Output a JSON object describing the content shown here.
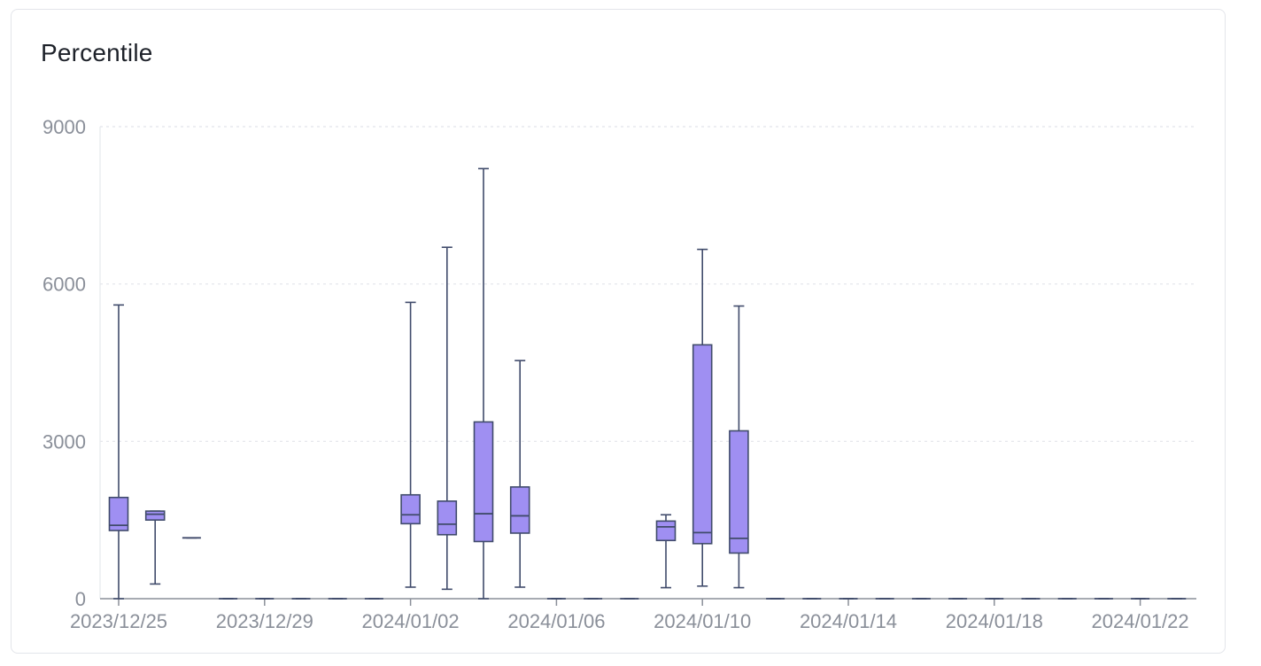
{
  "card": {
    "title": "Percentile"
  },
  "chart_data": {
    "type": "boxplot",
    "title": "Percentile",
    "xlabel": "",
    "ylabel": "",
    "ylim": [
      0,
      9000
    ],
    "y_ticks": [
      0,
      3000,
      6000,
      9000
    ],
    "y_tick_labels": [
      "0",
      "3000",
      "6000",
      "9000"
    ],
    "x_tick_labels": [
      "2023/12/25",
      "2023/12/29",
      "2024/01/02",
      "2024/01/06",
      "2024/01/10",
      "2024/01/14",
      "2024/01/18",
      "2024/01/22"
    ],
    "grid": "horizontal dotted",
    "colors": {
      "box_fill": "#9f8ff2",
      "box_stroke": "#404b6b",
      "axis": "#8a8f99",
      "grid": "#e2e4e9"
    },
    "categories": [
      "2023/12/25",
      "2023/12/26",
      "2023/12/27",
      "2023/12/28",
      "2023/12/29",
      "2023/12/30",
      "2023/12/31",
      "2024/01/01",
      "2024/01/02",
      "2024/01/03",
      "2024/01/04",
      "2024/01/05",
      "2024/01/06",
      "2024/01/07",
      "2024/01/08",
      "2024/01/09",
      "2024/01/10",
      "2024/01/11",
      "2024/01/12",
      "2024/01/13",
      "2024/01/14",
      "2024/01/15",
      "2024/01/16",
      "2024/01/17",
      "2024/01/18",
      "2024/01/19",
      "2024/01/20",
      "2024/01/21",
      "2024/01/22",
      "2024/01/23"
    ],
    "boxes": [
      {
        "date": "2023/12/25",
        "min": 0,
        "q1": 1300,
        "median": 1400,
        "q3": 1930,
        "max": 5600
      },
      {
        "date": "2023/12/26",
        "min": 280,
        "q1": 1500,
        "median": 1610,
        "q3": 1670,
        "max": 1670
      },
      {
        "date": "2023/12/27",
        "min": 1160,
        "q1": 1160,
        "median": 1160,
        "q3": 1160,
        "max": 1160
      },
      {
        "date": "2023/12/28",
        "min": 0,
        "q1": 0,
        "median": 0,
        "q3": 0,
        "max": 0
      },
      {
        "date": "2023/12/29",
        "min": 0,
        "q1": 0,
        "median": 0,
        "q3": 0,
        "max": 0
      },
      {
        "date": "2023/12/30",
        "min": 0,
        "q1": 0,
        "median": 0,
        "q3": 0,
        "max": 0
      },
      {
        "date": "2023/12/31",
        "min": 0,
        "q1": 0,
        "median": 0,
        "q3": 0,
        "max": 0
      },
      {
        "date": "2024/01/01",
        "min": 0,
        "q1": 0,
        "median": 0,
        "q3": 0,
        "max": 0
      },
      {
        "date": "2024/01/02",
        "min": 220,
        "q1": 1430,
        "median": 1600,
        "q3": 1980,
        "max": 5650
      },
      {
        "date": "2024/01/03",
        "min": 180,
        "q1": 1220,
        "median": 1420,
        "q3": 1860,
        "max": 6700
      },
      {
        "date": "2024/01/04",
        "min": 0,
        "q1": 1090,
        "median": 1620,
        "q3": 3370,
        "max": 8200
      },
      {
        "date": "2024/01/05",
        "min": 220,
        "q1": 1250,
        "median": 1580,
        "q3": 2130,
        "max": 4540
      },
      {
        "date": "2024/01/06",
        "min": 0,
        "q1": 0,
        "median": 0,
        "q3": 0,
        "max": 0
      },
      {
        "date": "2024/01/07",
        "min": 0,
        "q1": 0,
        "median": 0,
        "q3": 0,
        "max": 0
      },
      {
        "date": "2024/01/08",
        "min": 0,
        "q1": 0,
        "median": 0,
        "q3": 0,
        "max": 0
      },
      {
        "date": "2024/01/09",
        "min": 210,
        "q1": 1110,
        "median": 1370,
        "q3": 1480,
        "max": 1600
      },
      {
        "date": "2024/01/10",
        "min": 240,
        "q1": 1050,
        "median": 1260,
        "q3": 4840,
        "max": 6660
      },
      {
        "date": "2024/01/11",
        "min": 210,
        "q1": 870,
        "median": 1150,
        "q3": 3200,
        "max": 5580
      },
      {
        "date": "2024/01/12",
        "min": 0,
        "q1": 0,
        "median": 0,
        "q3": 0,
        "max": 0
      },
      {
        "date": "2024/01/13",
        "min": 0,
        "q1": 0,
        "median": 0,
        "q3": 0,
        "max": 0
      },
      {
        "date": "2024/01/14",
        "min": 0,
        "q1": 0,
        "median": 0,
        "q3": 0,
        "max": 0
      },
      {
        "date": "2024/01/15",
        "min": 0,
        "q1": 0,
        "median": 0,
        "q3": 0,
        "max": 0
      },
      {
        "date": "2024/01/16",
        "min": 0,
        "q1": 0,
        "median": 0,
        "q3": 0,
        "max": 0
      },
      {
        "date": "2024/01/17",
        "min": 0,
        "q1": 0,
        "median": 0,
        "q3": 0,
        "max": 0
      },
      {
        "date": "2024/01/18",
        "min": 0,
        "q1": 0,
        "median": 0,
        "q3": 0,
        "max": 0
      },
      {
        "date": "2024/01/19",
        "min": 0,
        "q1": 0,
        "median": 0,
        "q3": 0,
        "max": 0
      },
      {
        "date": "2024/01/20",
        "min": 0,
        "q1": 0,
        "median": 0,
        "q3": 0,
        "max": 0
      },
      {
        "date": "2024/01/21",
        "min": 0,
        "q1": 0,
        "median": 0,
        "q3": 0,
        "max": 0
      },
      {
        "date": "2024/01/22",
        "min": 0,
        "q1": 0,
        "median": 0,
        "q3": 0,
        "max": 0
      },
      {
        "date": "2024/01/23",
        "min": 0,
        "q1": 0,
        "median": 0,
        "q3": 0,
        "max": 0
      }
    ]
  }
}
